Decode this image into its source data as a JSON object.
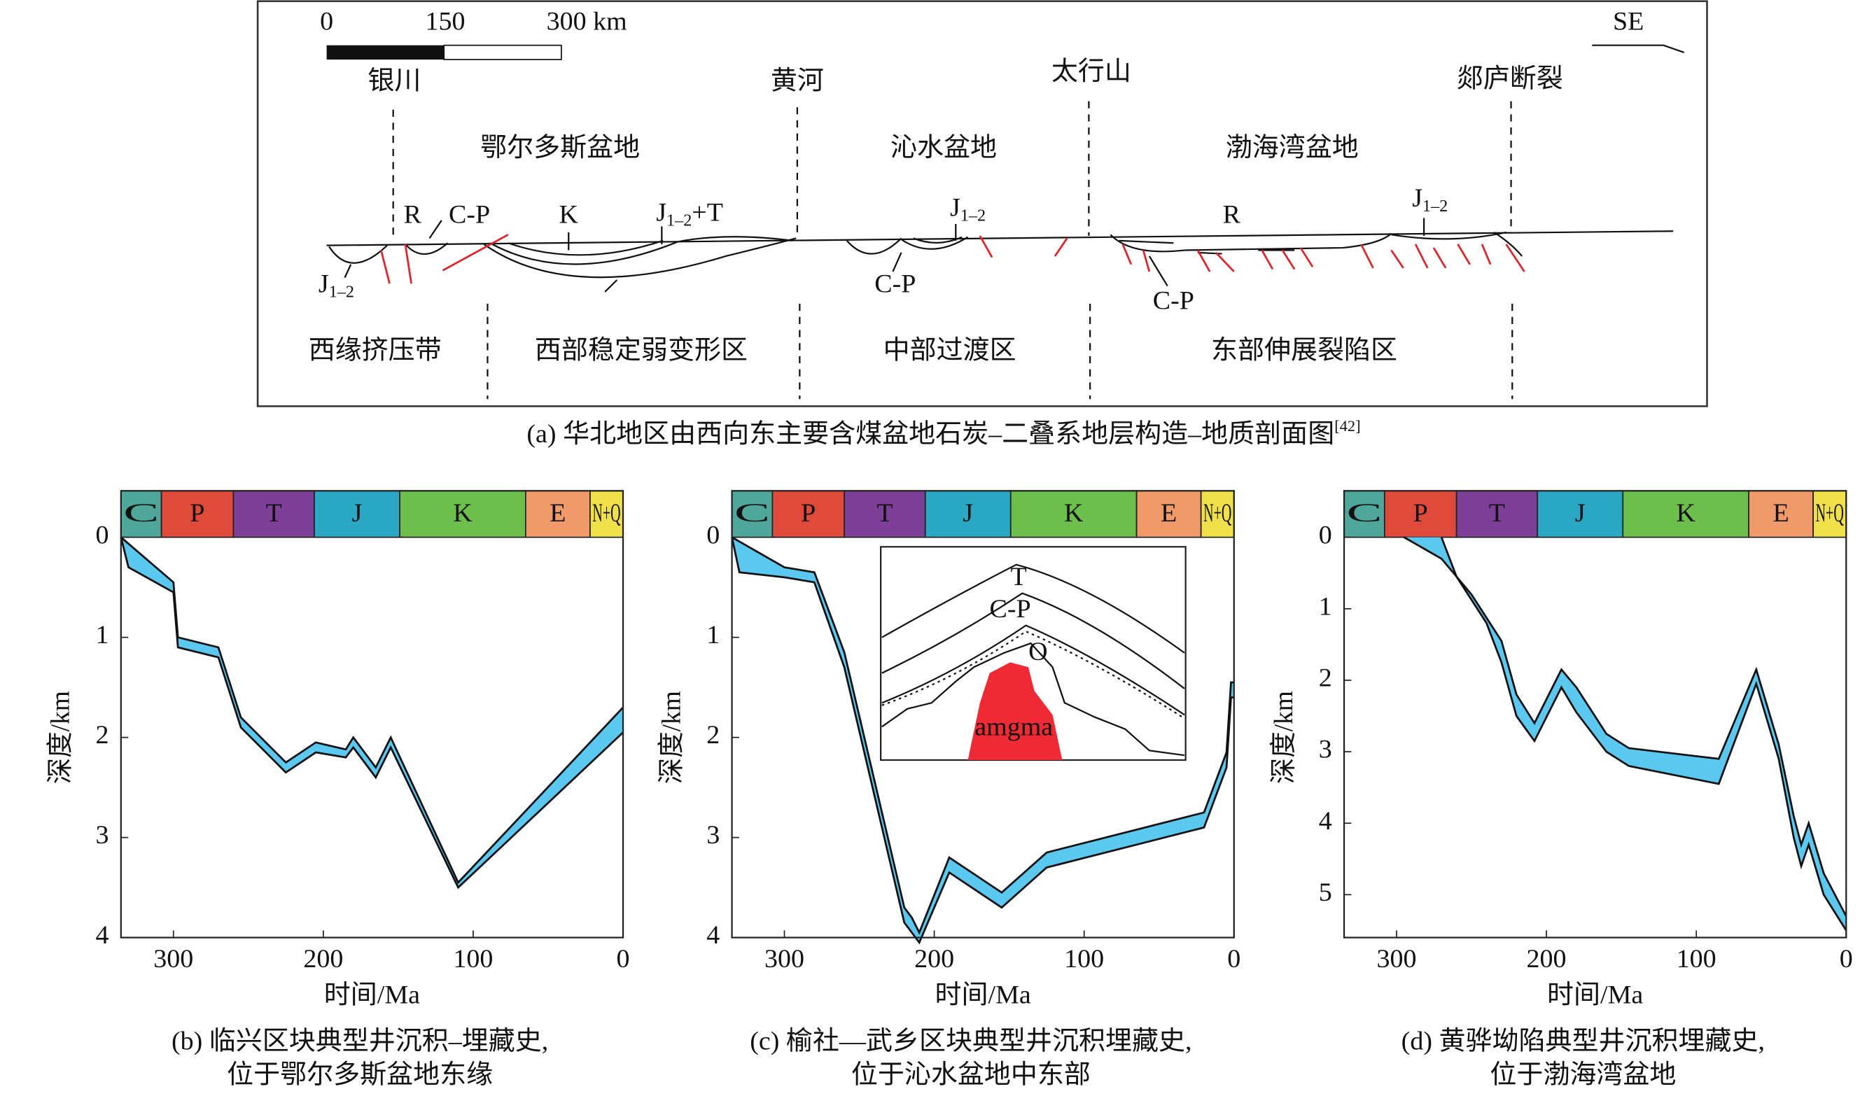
{
  "panel_a": {
    "scale_labels": [
      "0",
      "150",
      "300 km"
    ],
    "direction": "SE",
    "locations": [
      "银川",
      "黄河",
      "太行山",
      "郯庐断裂"
    ],
    "basins": [
      "鄂尔多斯盆地",
      "沁水盆地",
      "渤海湾盆地"
    ],
    "strata": [
      {
        "text": "R"
      },
      {
        "text": "C-P"
      },
      {
        "text": "K"
      },
      {
        "text": "J",
        "sub": "1–2",
        "suffix": "+T"
      },
      {
        "text": "J",
        "sub": "1–2"
      },
      {
        "text": "C-P"
      },
      {
        "text": "J",
        "sub": "1–2"
      },
      {
        "text": "R"
      },
      {
        "text": "J",
        "sub": "1–2"
      },
      {
        "text": "C-P"
      }
    ],
    "zones": [
      "西缘挤压带",
      "西部稳定弱变形区",
      "中部过渡区",
      "东部伸展裂陷区"
    ],
    "caption": "(a) 华北地区由西向东主要含煤盆地石炭–二叠系地层构造–地质剖面图",
    "caption_ref": "[42]"
  },
  "charts": [
    {
      "type": "band",
      "period_labels": [
        "C",
        "P",
        "T",
        "J",
        "K",
        "E",
        "N+Q"
      ],
      "period_colors": [
        "#4fa69a",
        "#e04a3a",
        "#7e3f98",
        "#2aa8c4",
        "#6cbf4a",
        "#ef9a68",
        "#f0e04a"
      ],
      "period_bounds": [
        335,
        308,
        260,
        206,
        149,
        65,
        22,
        0
      ],
      "xlim": [
        335,
        0
      ],
      "ylim": [
        0,
        4
      ],
      "xticks": [
        300,
        200,
        100,
        0
      ],
      "yticks": [
        0,
        1,
        2,
        3,
        4
      ],
      "xlabel": "时间/Ma",
      "ylabel": "深度/km",
      "color": "#5bc8ef",
      "series": [
        {
          "x": [
            335,
            300,
            297,
            270,
            255,
            225,
            205,
            185,
            180,
            165,
            155,
            110,
            0
          ],
          "values": [
            0,
            0.45,
            1.0,
            1.1,
            1.8,
            2.25,
            2.05,
            2.12,
            2.0,
            2.3,
            2.0,
            3.45,
            1.7
          ]
        },
        {
          "x": [
            335,
            330,
            300,
            297,
            270,
            255,
            225,
            205,
            185,
            180,
            165,
            155,
            110,
            0
          ],
          "values": [
            0,
            0.3,
            0.55,
            1.1,
            1.2,
            1.9,
            2.35,
            2.15,
            2.2,
            2.1,
            2.4,
            2.1,
            3.5,
            1.95
          ]
        }
      ],
      "caption": [
        "(b) 临兴区块典型井沉积–埋藏史,",
        "位于鄂尔多斯盆地东缘"
      ]
    },
    {
      "type": "band",
      "period_labels": [
        "C",
        "P",
        "T",
        "J",
        "K",
        "E",
        "N+Q"
      ],
      "period_colors": [
        "#4fa69a",
        "#e04a3a",
        "#7e3f98",
        "#2aa8c4",
        "#6cbf4a",
        "#ef9a68",
        "#f0e04a"
      ],
      "period_bounds": [
        335,
        308,
        260,
        206,
        149,
        65,
        22,
        0
      ],
      "xlim": [
        335,
        0
      ],
      "ylim": [
        0,
        4
      ],
      "xticks": [
        300,
        200,
        100,
        0
      ],
      "yticks": [
        0,
        1,
        2,
        3,
        4
      ],
      "xlabel": "时间/Ma",
      "ylabel": "深度/km",
      "color": "#5bc8ef",
      "series": [
        {
          "x": [
            335,
            300,
            280,
            260,
            220,
            215,
            210,
            190,
            155,
            125,
            20,
            5,
            2,
            0
          ],
          "values": [
            0,
            0.3,
            0.35,
            1.15,
            3.7,
            3.8,
            3.95,
            3.2,
            3.55,
            3.15,
            2.75,
            2.15,
            1.45,
            1.45
          ]
        },
        {
          "x": [
            335,
            330,
            300,
            280,
            260,
            220,
            215,
            210,
            190,
            155,
            125,
            20,
            5,
            2,
            0
          ],
          "values": [
            0,
            0.35,
            0.4,
            0.45,
            1.3,
            3.85,
            3.95,
            4.05,
            3.35,
            3.7,
            3.3,
            2.9,
            2.3,
            1.6,
            1.6
          ]
        }
      ],
      "inset": {
        "labels": [
          "T",
          "C-P",
          "O",
          "amgma"
        ]
      },
      "caption": [
        "(c) 榆社—武乡区块典型井沉积埋藏史,",
        "位于沁水盆地中东部"
      ]
    },
    {
      "type": "band",
      "period_labels": [
        "C",
        "P",
        "T",
        "J",
        "K",
        "E",
        "N+Q"
      ],
      "period_colors": [
        "#4fa69a",
        "#e04a3a",
        "#7e3f98",
        "#2aa8c4",
        "#6cbf4a",
        "#ef9a68",
        "#f0e04a"
      ],
      "period_bounds": [
        335,
        308,
        260,
        206,
        149,
        65,
        22,
        0
      ],
      "xlim": [
        335,
        0
      ],
      "ylim": [
        0,
        5.6
      ],
      "xticks": [
        300,
        200,
        100,
        0
      ],
      "yticks": [
        0,
        1,
        2,
        3,
        4,
        5
      ],
      "xlabel": "时间/Ma",
      "ylabel": "深度/km",
      "color": "#5bc8ef",
      "series": [
        {
          "x": [
            295,
            270,
            250,
            230,
            220,
            208,
            190,
            180,
            160,
            145,
            85,
            60,
            45,
            35,
            30,
            25,
            15,
            0
          ],
          "values": [
            0,
            0.3,
            0.8,
            1.45,
            2.2,
            2.6,
            1.85,
            2.1,
            2.75,
            2.95,
            3.1,
            1.85,
            2.9,
            3.9,
            4.3,
            4.0,
            4.7,
            5.3
          ]
        },
        {
          "x": [
            270,
            260,
            240,
            230,
            220,
            208,
            190,
            180,
            160,
            145,
            85,
            60,
            45,
            35,
            30,
            25,
            15,
            0
          ],
          "values": [
            0,
            0.55,
            1.2,
            1.75,
            2.5,
            2.85,
            2.1,
            2.45,
            3.0,
            3.2,
            3.45,
            2.05,
            3.1,
            4.2,
            4.6,
            4.3,
            5.0,
            5.5
          ]
        }
      ],
      "caption": [
        "(d) 黄骅坳陷典型井沉积埋藏史,",
        "位于渤海湾盆地"
      ]
    }
  ]
}
